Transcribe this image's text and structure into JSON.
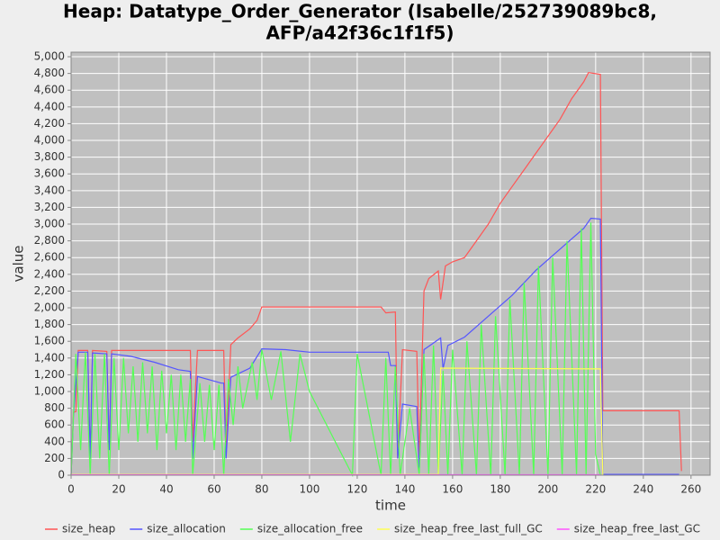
{
  "chart_data": {
    "type": "line",
    "title": [
      "Heap: Datatype_Order_Generator (Isabelle/252739089bc8,",
      "AFP/a42f36c1f1f5)"
    ],
    "xlabel": "time",
    "ylabel": "value",
    "xlim": [
      0,
      268
    ],
    "ylim": [
      0,
      5054
    ],
    "xticks": [
      0,
      20,
      40,
      60,
      80,
      100,
      120,
      140,
      160,
      180,
      200,
      220,
      240,
      260
    ],
    "yticks": [
      0,
      200,
      400,
      600,
      800,
      {
        "value": 1000,
        "label": "1,000"
      },
      {
        "value": 1200,
        "label": "1,200"
      },
      {
        "value": 1400,
        "label": "1,400"
      },
      {
        "value": 1600,
        "label": "1,600"
      },
      {
        "value": 1800,
        "label": "1,800"
      },
      {
        "value": 2000,
        "label": "2,000"
      },
      {
        "value": 2200,
        "label": "2,200"
      },
      {
        "value": 2400,
        "label": "2,400"
      },
      {
        "value": 2600,
        "label": "2,600"
      },
      {
        "value": 2800,
        "label": "2,800"
      },
      {
        "value": 3000,
        "label": "3,000"
      },
      {
        "value": 3200,
        "label": "3,200"
      },
      {
        "value": 3400,
        "label": "3,400"
      },
      {
        "value": 3600,
        "label": "3,600"
      },
      {
        "value": 3800,
        "label": "3,800"
      },
      {
        "value": 4000,
        "label": "4,000"
      },
      {
        "value": 4200,
        "label": "4,200"
      },
      {
        "value": 4400,
        "label": "4,400"
      },
      {
        "value": 4600,
        "label": "4,600"
      },
      {
        "value": 4800,
        "label": "4,800"
      },
      {
        "value": 5000,
        "label": "5,000"
      }
    ],
    "grid": true,
    "series": [
      {
        "name": "size_heap",
        "color": "#ff5555",
        "x": [
          0,
          1,
          2,
          3,
          7,
          8,
          9,
          15,
          16,
          17,
          30,
          50,
          51,
          53,
          64,
          65,
          67,
          70,
          75,
          78,
          80,
          90,
          110,
          130,
          132,
          136,
          137,
          139,
          145,
          146,
          148,
          150,
          154,
          155,
          157,
          160,
          165,
          170,
          175,
          180,
          185,
          190,
          195,
          200,
          205,
          210,
          215,
          217,
          222,
          223,
          255,
          256
        ],
        "values": [
          0,
          750,
          760,
          1490,
          1490,
          200,
          1490,
          1480,
          300,
          1490,
          1490,
          1490,
          400,
          1490,
          1490,
          300,
          1560,
          1640,
          1750,
          1850,
          2010,
          2010,
          2010,
          2010,
          1940,
          1950,
          200,
          1500,
          1480,
          200,
          2200,
          2350,
          2440,
          2100,
          2500,
          2550,
          2600,
          2800,
          3000,
          3250,
          3450,
          3650,
          3850,
          4050,
          4250,
          4500,
          4700,
          4810,
          4790,
          770,
          770,
          50
        ]
      },
      {
        "name": "size_allocation",
        "color": "#5555ff",
        "x": [
          0,
          1,
          3,
          7,
          8,
          9,
          15,
          16,
          17,
          25,
          35,
          45,
          50,
          51,
          53,
          63,
          64,
          65,
          67,
          75,
          80,
          90,
          100,
          133,
          134,
          136,
          137,
          139,
          145,
          146,
          148,
          155,
          156,
          158,
          165,
          175,
          185,
          195,
          205,
          215,
          218,
          222,
          223,
          255
        ],
        "values": [
          0,
          700,
          1470,
          1470,
          200,
          1460,
          1450,
          300,
          1450,
          1420,
          1350,
          1260,
          1240,
          200,
          1180,
          1100,
          1100,
          200,
          1170,
          1280,
          1510,
          1500,
          1470,
          1470,
          1310,
          1310,
          200,
          850,
          820,
          50,
          1500,
          1640,
          1270,
          1550,
          1650,
          1900,
          2150,
          2450,
          2700,
          2950,
          3070,
          3060,
          10,
          10
        ]
      },
      {
        "name": "size_allocation_free",
        "color": "#55ff55",
        "x": [
          0,
          2,
          4,
          6,
          8,
          10,
          12,
          14,
          16,
          18,
          20,
          22,
          24,
          26,
          28,
          30,
          32,
          34,
          36,
          38,
          40,
          42,
          44,
          46,
          48,
          50,
          51,
          54,
          56,
          58,
          60,
          62,
          64,
          66,
          68,
          70,
          72,
          76,
          78,
          80,
          84,
          88,
          92,
          96,
          100,
          118,
          120,
          130,
          132,
          134,
          136,
          138,
          142,
          146,
          148,
          150,
          152,
          154,
          156,
          158,
          160,
          164,
          166,
          170,
          172,
          176,
          178,
          182,
          184,
          188,
          190,
          194,
          196,
          200,
          202,
          206,
          208,
          212,
          214,
          216,
          218,
          220,
          222
        ],
        "values": [
          0,
          1450,
          300,
          1470,
          0,
          1450,
          200,
          1450,
          0,
          1400,
          300,
          1400,
          500,
          1300,
          400,
          1350,
          500,
          1300,
          300,
          1250,
          500,
          1200,
          300,
          1200,
          400,
          1150,
          0,
          1100,
          400,
          1080,
          300,
          1080,
          0,
          1150,
          600,
          1300,
          800,
          1350,
          900,
          1500,
          900,
          1480,
          400,
          1450,
          1000,
          0,
          1450,
          0,
          1400,
          0,
          1300,
          0,
          800,
          0,
          1450,
          0,
          1550,
          0,
          1250,
          0,
          1500,
          0,
          1600,
          0,
          1800,
          0,
          1900,
          0,
          2100,
          0,
          2300,
          0,
          2500,
          0,
          2600,
          0,
          2800,
          0,
          2950,
          0,
          3020,
          250,
          0
        ]
      },
      {
        "name": "size_heap_free_last_full_GC",
        "color": "#ffff55",
        "x": [
          0,
          154,
          155,
          222,
          223
        ],
        "values": [
          10,
          10,
          1280,
          1270,
          0
        ]
      },
      {
        "name": "size_heap_free_last_GC",
        "color": "#ff55ff",
        "x": [
          0,
          222
        ],
        "values": [
          5,
          5
        ]
      }
    ]
  }
}
